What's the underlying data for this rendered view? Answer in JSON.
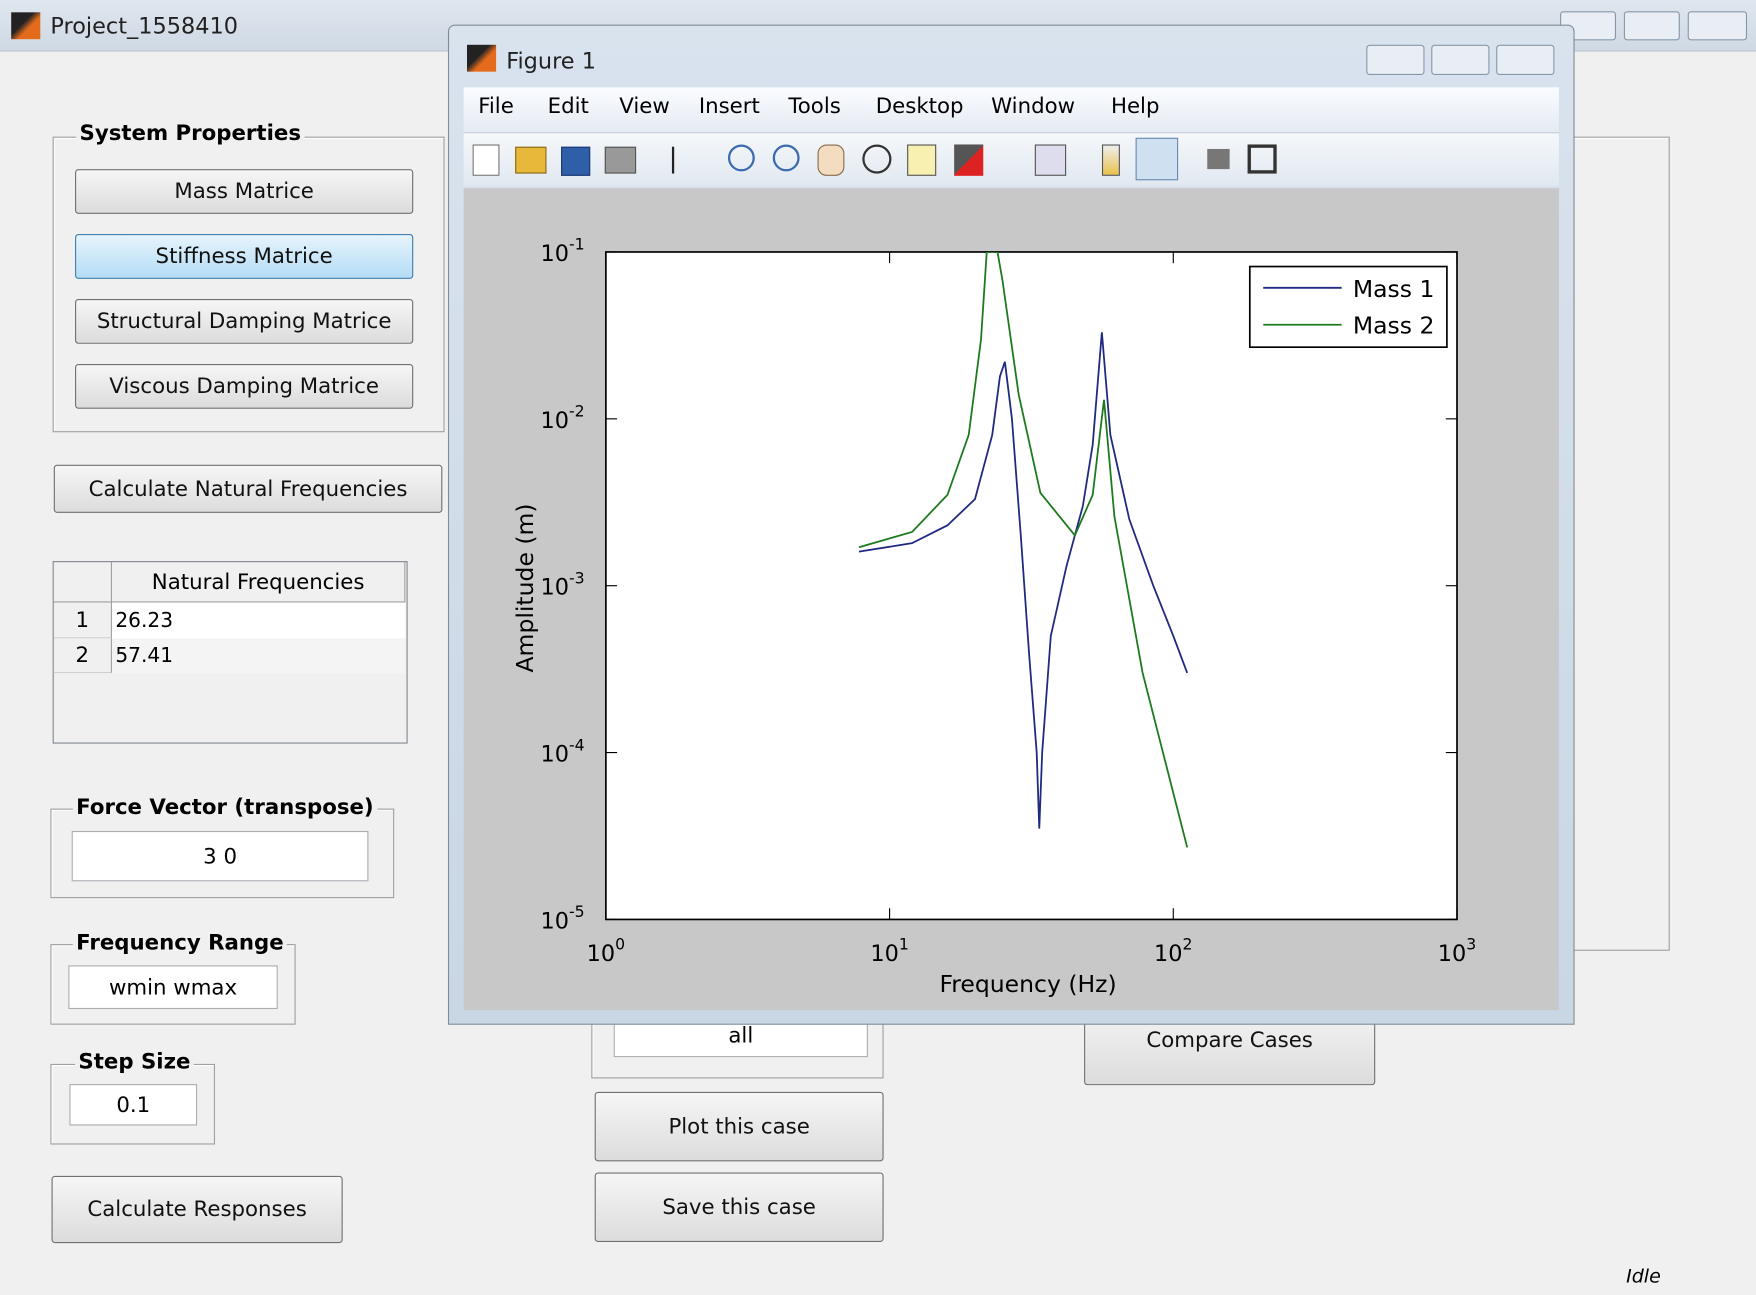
{
  "window": {
    "title": "Project_1558410",
    "status": "Idle"
  },
  "system_properties": {
    "title": "System Properties",
    "buttons": [
      "Mass Matrice",
      "Stiffness Matrice",
      "Structural Damping Matrice",
      "Viscous Damping Matrice"
    ]
  },
  "calc_natural": "Calculate Natural Frequencies",
  "natural_table": {
    "header": "Natural Frequencies",
    "rows": [
      [
        1,
        26.23
      ],
      [
        2,
        57.41
      ]
    ]
  },
  "force_vector": {
    "title": "Force Vector (transpose)",
    "value": "3 0"
  },
  "frequency_range": {
    "title": "Frequency Range",
    "value": "wmin wmax"
  },
  "step_size": {
    "title": "Step Size",
    "value": 0.1
  },
  "calc_responses": "Calculate Responses",
  "case_select": "all",
  "plot_case": "Plot this case",
  "save_case": "Save this case",
  "compare": "Compare Cases",
  "figure": {
    "title": "Figure 1",
    "menu": [
      "File",
      "Edit",
      "View",
      "Insert",
      "Tools",
      "Desktop",
      "Window",
      "Help"
    ]
  },
  "chart_data": {
    "type": "line",
    "x_label": "Frequency (Hz)",
    "y_label": "Amplitude (m)",
    "x_scale": "log",
    "y_scale": "log",
    "legend": "northeast",
    "xlim": [
      1,
      1000
    ],
    "ylim": [
      1e-05,
      0.1
    ],
    "xticks": [
      {
        "value": 1,
        "label": "10^0"
      },
      {
        "value": 10,
        "label": "10^1"
      },
      {
        "value": 100,
        "label": "10^2"
      },
      {
        "value": 1000,
        "label": "10^3"
      }
    ],
    "yticks": [
      {
        "value": 1e-05,
        "label": "10^-5"
      },
      {
        "value": 0.0001,
        "label": "10^-4"
      },
      {
        "value": 0.001,
        "label": "10^-3"
      },
      {
        "value": 0.01,
        "label": "10^-2"
      },
      {
        "value": 0.1,
        "label": "10^-1"
      }
    ],
    "series": [
      {
        "name": "Mass 1",
        "color": "#1f2a80",
        "x": [
          7.8,
          12,
          16,
          20,
          23,
          24.5,
          25.5,
          27,
          29,
          31,
          33,
          33.7,
          34.5,
          37,
          42,
          48,
          52,
          56,
          60,
          70,
          85,
          100,
          112
        ],
        "values": [
          0.0016,
          0.0018,
          0.0023,
          0.0033,
          0.008,
          0.018,
          0.022,
          0.01,
          0.002,
          0.0004,
          0.0001,
          3.5e-05,
          0.0001,
          0.0005,
          0.0013,
          0.003,
          0.007,
          0.033,
          0.008,
          0.0025,
          0.001,
          0.0005,
          0.0003
        ]
      },
      {
        "name": "Mass 2",
        "color": "#1e7a1e",
        "x": [
          7.8,
          12,
          16,
          19,
          21,
          22,
          24,
          25,
          28.5,
          34,
          45,
          52,
          57,
          62,
          78,
          112
        ],
        "values": [
          0.0017,
          0.0021,
          0.0035,
          0.008,
          0.03,
          0.1,
          0.1,
          0.068,
          0.014,
          0.0036,
          0.002,
          0.0035,
          0.013,
          0.0026,
          0.0003,
          2.7e-05
        ]
      }
    ]
  }
}
